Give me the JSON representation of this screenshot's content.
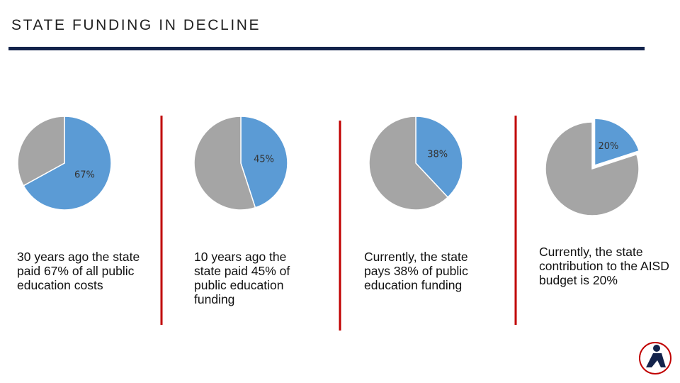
{
  "title": "STATE FUNDING IN DECLINE",
  "chart_data": [
    {
      "type": "pie",
      "values": [
        67,
        33
      ],
      "value_labels": [
        "67%",
        null
      ],
      "colors": [
        "#5b9bd5",
        "#a5a5a5"
      ],
      "caption": "30 years ago the state paid 67% of all public education costs"
    },
    {
      "type": "pie",
      "values": [
        45,
        55
      ],
      "value_labels": [
        "45%",
        null
      ],
      "colors": [
        "#5b9bd5",
        "#a5a5a5"
      ],
      "caption": "10 years ago the state paid 45% of public education funding"
    },
    {
      "type": "pie",
      "values": [
        38,
        62
      ],
      "value_labels": [
        "38%",
        null
      ],
      "colors": [
        "#5b9bd5",
        "#a5a5a5"
      ],
      "caption": "Currently, the state pays 38% of public education funding"
    },
    {
      "type": "pie",
      "values": [
        20,
        80
      ],
      "value_labels": [
        "20%",
        null
      ],
      "colors": [
        "#5b9bd5",
        "#a5a5a5"
      ],
      "caption": "Currently, the state contribution to the AISD budget is 20%"
    }
  ]
}
